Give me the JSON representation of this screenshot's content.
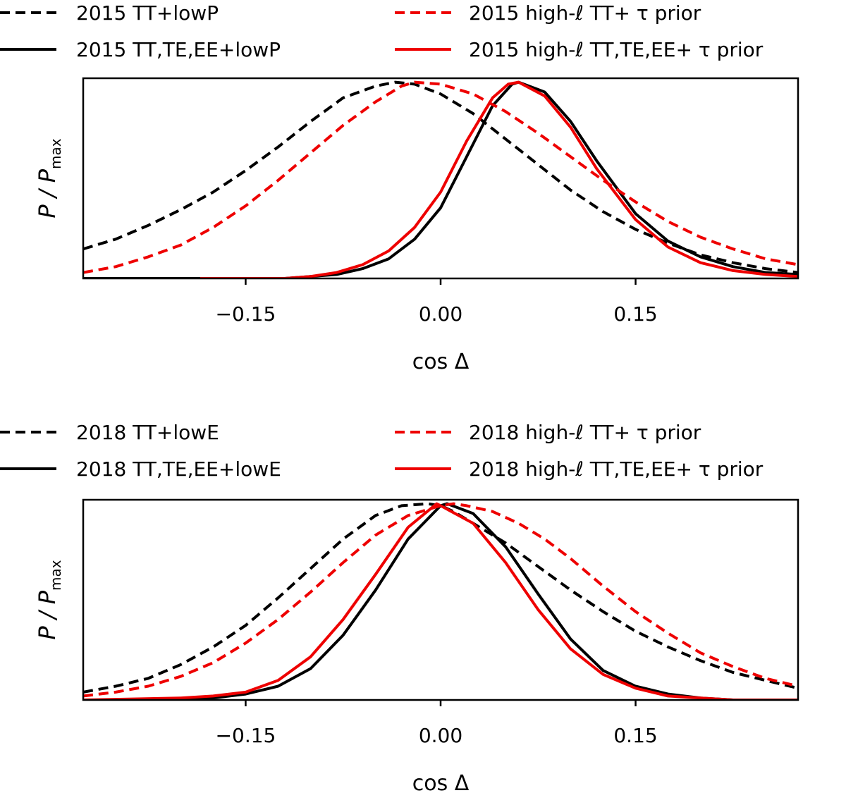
{
  "chart_data": [
    {
      "type": "line",
      "xlabel": "cos Δ",
      "ylabel_main": "P / P",
      "ylabel_sub": "max",
      "xlim": [
        -0.275,
        0.275
      ],
      "ylim": [
        0,
        1.02
      ],
      "xticks": [
        -0.15,
        0.0,
        0.15
      ],
      "xtick_labels": [
        "−0.15",
        "0.00",
        "0.15"
      ],
      "legend_position": "top, two columns above the axes",
      "series": [
        {
          "name": "2015 TT+lowP",
          "color": "#000000",
          "style": "dashed",
          "x": [
            -0.275,
            -0.25,
            -0.225,
            -0.2,
            -0.175,
            -0.15,
            -0.125,
            -0.1,
            -0.075,
            -0.05,
            -0.035,
            -0.02,
            0.0,
            0.025,
            0.05,
            0.075,
            0.1,
            0.125,
            0.15,
            0.175,
            0.2,
            0.225,
            0.25,
            0.275
          ],
          "y": [
            0.15,
            0.2,
            0.27,
            0.35,
            0.44,
            0.55,
            0.67,
            0.8,
            0.92,
            0.98,
            1.0,
            0.99,
            0.94,
            0.84,
            0.71,
            0.58,
            0.45,
            0.34,
            0.25,
            0.18,
            0.12,
            0.08,
            0.05,
            0.03
          ]
        },
        {
          "name": "2015 TT,TE,EE+lowP",
          "color": "#000000",
          "style": "solid",
          "x": [
            -0.275,
            -0.2,
            -0.15,
            -0.12,
            -0.1,
            -0.08,
            -0.06,
            -0.04,
            -0.02,
            0.0,
            0.02,
            0.04,
            0.055,
            0.06,
            0.08,
            0.1,
            0.12,
            0.15,
            0.175,
            0.2,
            0.225,
            0.25,
            0.275
          ],
          "y": [
            0.0,
            0.0,
            0.0,
            0.0,
            0.01,
            0.02,
            0.05,
            0.1,
            0.2,
            0.36,
            0.62,
            0.88,
            0.99,
            1.0,
            0.95,
            0.8,
            0.6,
            0.33,
            0.19,
            0.11,
            0.06,
            0.03,
            0.02
          ]
        },
        {
          "name": "2015 high-ℓ TT+ τ prior",
          "color": "#ee0000",
          "style": "dashed",
          "x": [
            -0.275,
            -0.25,
            -0.225,
            -0.2,
            -0.175,
            -0.15,
            -0.125,
            -0.1,
            -0.075,
            -0.05,
            -0.03,
            -0.02,
            0.0,
            0.025,
            0.05,
            0.075,
            0.1,
            0.125,
            0.15,
            0.175,
            0.2,
            0.225,
            0.25,
            0.275
          ],
          "y": [
            0.03,
            0.06,
            0.11,
            0.17,
            0.26,
            0.37,
            0.5,
            0.64,
            0.78,
            0.9,
            0.98,
            1.0,
            0.99,
            0.94,
            0.85,
            0.74,
            0.62,
            0.5,
            0.39,
            0.29,
            0.21,
            0.15,
            0.1,
            0.07
          ]
        },
        {
          "name": "2015 high-ℓ TT,TE,EE+ τ prior",
          "color": "#ee0000",
          "style": "solid",
          "x": [
            -0.185,
            -0.15,
            -0.12,
            -0.1,
            -0.08,
            -0.06,
            -0.04,
            -0.02,
            0.0,
            0.02,
            0.04,
            0.052,
            0.06,
            0.08,
            0.1,
            0.12,
            0.15,
            0.175,
            0.2,
            0.225,
            0.25,
            0.275
          ],
          "y": [
            0.0,
            0.0,
            0.0,
            0.01,
            0.03,
            0.07,
            0.14,
            0.26,
            0.44,
            0.7,
            0.92,
            0.99,
            1.0,
            0.93,
            0.77,
            0.56,
            0.3,
            0.16,
            0.08,
            0.04,
            0.02,
            0.01
          ]
        }
      ],
      "legend": [
        {
          "label": "2015 TT+lowP",
          "color": "#000000",
          "style": "dashed"
        },
        {
          "label": "2015 TT,TE,EE+lowP",
          "color": "#000000",
          "style": "solid"
        },
        {
          "label": "2015 high-ℓ TT+ τ prior",
          "color": "#ee0000",
          "style": "dashed"
        },
        {
          "label": "2015 high-ℓ TT,TE,EE+ τ prior",
          "color": "#ee0000",
          "style": "solid"
        }
      ]
    },
    {
      "type": "line",
      "xlabel": "cos Δ",
      "ylabel_main": "P / P",
      "ylabel_sub": "max",
      "xlim": [
        -0.275,
        0.275
      ],
      "ylim": [
        0,
        1.02
      ],
      "xticks": [
        -0.15,
        0.0,
        0.15
      ],
      "xtick_labels": [
        "−0.15",
        "0.00",
        "0.15"
      ],
      "legend_position": "top, two columns above the axes",
      "series": [
        {
          "name": "2018 TT+lowE",
          "color": "#000000",
          "style": "dashed",
          "x": [
            -0.275,
            -0.25,
            -0.225,
            -0.2,
            -0.175,
            -0.15,
            -0.125,
            -0.1,
            -0.075,
            -0.05,
            -0.03,
            -0.01,
            0.0,
            0.01,
            0.025,
            0.05,
            0.075,
            0.1,
            0.125,
            0.15,
            0.175,
            0.2,
            0.225,
            0.25,
            0.275
          ],
          "y": [
            0.04,
            0.07,
            0.11,
            0.18,
            0.27,
            0.38,
            0.52,
            0.67,
            0.82,
            0.94,
            0.99,
            1.0,
            0.99,
            0.96,
            0.9,
            0.8,
            0.68,
            0.56,
            0.45,
            0.35,
            0.27,
            0.2,
            0.14,
            0.1,
            0.06
          ]
        },
        {
          "name": "2018 TT,TE,EE+lowE",
          "color": "#000000",
          "style": "solid",
          "x": [
            -0.275,
            -0.2,
            -0.175,
            -0.15,
            -0.125,
            -0.1,
            -0.075,
            -0.05,
            -0.025,
            0.0,
            0.005,
            0.025,
            0.05,
            0.075,
            0.1,
            0.125,
            0.15,
            0.175,
            0.2,
            0.225,
            0.25,
            0.275
          ],
          "y": [
            0.0,
            0.0,
            0.01,
            0.03,
            0.07,
            0.16,
            0.33,
            0.56,
            0.82,
            0.99,
            1.0,
            0.95,
            0.78,
            0.54,
            0.31,
            0.15,
            0.07,
            0.03,
            0.01,
            0.0,
            0.0,
            0.0
          ]
        },
        {
          "name": "2018 high-ℓ TT+ τ prior",
          "color": "#ee0000",
          "style": "dashed",
          "x": [
            -0.275,
            -0.25,
            -0.225,
            -0.2,
            -0.175,
            -0.15,
            -0.125,
            -0.1,
            -0.075,
            -0.05,
            -0.025,
            0.0,
            0.01,
            0.02,
            0.04,
            0.06,
            0.08,
            0.1,
            0.125,
            0.15,
            0.175,
            0.2,
            0.225,
            0.25,
            0.275
          ],
          "y": [
            0.02,
            0.04,
            0.07,
            0.12,
            0.19,
            0.29,
            0.41,
            0.55,
            0.7,
            0.84,
            0.94,
            0.99,
            1.0,
            0.99,
            0.96,
            0.9,
            0.82,
            0.72,
            0.58,
            0.45,
            0.34,
            0.24,
            0.17,
            0.11,
            0.07
          ]
        },
        {
          "name": "2018 high-ℓ TT,TE,EE+ τ prior",
          "color": "#ee0000",
          "style": "solid",
          "x": [
            -0.275,
            -0.2,
            -0.175,
            -0.15,
            -0.125,
            -0.1,
            -0.075,
            -0.05,
            -0.025,
            -0.003,
            0.0,
            0.025,
            0.05,
            0.075,
            0.1,
            0.125,
            0.15,
            0.175,
            0.2,
            0.225,
            0.25,
            0.275
          ],
          "y": [
            0.0,
            0.01,
            0.02,
            0.04,
            0.1,
            0.22,
            0.41,
            0.64,
            0.88,
            1.0,
            0.99,
            0.9,
            0.7,
            0.46,
            0.26,
            0.13,
            0.06,
            0.02,
            0.01,
            0.0,
            0.0,
            0.0
          ]
        }
      ],
      "legend": [
        {
          "label": "2018 TT+lowE",
          "color": "#000000",
          "style": "dashed"
        },
        {
          "label": "2018 TT,TE,EE+lowE",
          "color": "#000000",
          "style": "solid"
        },
        {
          "label": "2018 high-ℓ TT+ τ prior",
          "color": "#ee0000",
          "style": "dashed"
        },
        {
          "label": "2018 high-ℓ TT,TE,EE+ τ prior",
          "color": "#ee0000",
          "style": "solid"
        }
      ]
    }
  ]
}
